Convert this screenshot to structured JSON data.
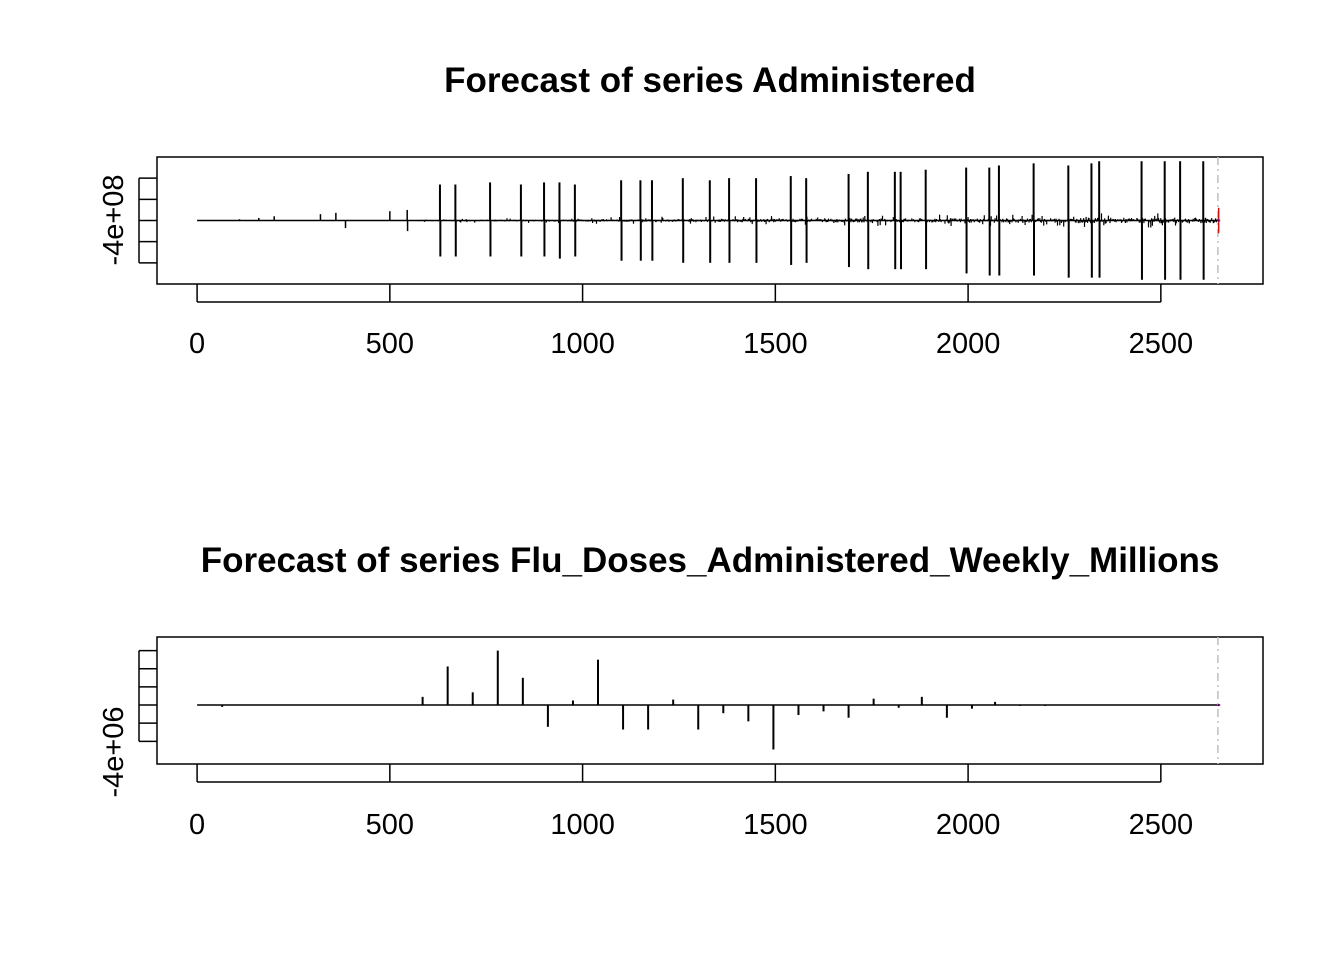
{
  "chart_data": [
    {
      "type": "line",
      "title": "Forecast of series Administered",
      "xlabel": "",
      "ylabel": "",
      "xlim": [
        -104,
        2765
      ],
      "ylim": [
        -1500000000.0,
        1500000000.0
      ],
      "x_ticks": [
        0,
        500,
        1000,
        1500,
        2000,
        2500
      ],
      "y_tick_values": [
        -1000000000.0,
        -500000000.0,
        0,
        500000000.0,
        1000000000.0
      ],
      "y_tick_label": "-4e+08",
      "forecast_start": 2648,
      "grid": false,
      "colors": {
        "series": "#000000",
        "forecast": "#ff0000",
        "forecast_mean": "#0000ff",
        "divider": "#bebebe"
      },
      "series": [
        {
          "values_description_free": true,
          "spikes": [
            {
              "x": 630,
              "y": 850000000.0
            },
            {
              "x": 631,
              "y": -850000000.0
            },
            {
              "x": 670,
              "y": 850000000.0
            },
            {
              "x": 671,
              "y": -850000000.0
            },
            {
              "x": 760,
              "y": 900000000.0
            },
            {
              "x": 761,
              "y": -850000000.0
            },
            {
              "x": 840,
              "y": 850000000.0
            },
            {
              "x": 841,
              "y": -850000000.0
            },
            {
              "x": 900,
              "y": 900000000.0
            },
            {
              "x": 901,
              "y": -850000000.0
            },
            {
              "x": 940,
              "y": 900000000.0
            },
            {
              "x": 941,
              "y": -900000000.0
            },
            {
              "x": 980,
              "y": 850000000.0
            },
            {
              "x": 981,
              "y": -850000000.0
            },
            {
              "x": 1100,
              "y": 950000000.0
            },
            {
              "x": 1101,
              "y": -950000000.0
            },
            {
              "x": 1150,
              "y": 950000000.0
            },
            {
              "x": 1151,
              "y": -950000000.0
            },
            {
              "x": 1180,
              "y": 950000000.0
            },
            {
              "x": 1181,
              "y": -950000000.0
            },
            {
              "x": 1260,
              "y": 1000000000.0
            },
            {
              "x": 1261,
              "y": -1000000000.0
            },
            {
              "x": 1330,
              "y": 950000000.0
            },
            {
              "x": 1331,
              "y": -1000000000.0
            },
            {
              "x": 1380,
              "y": 1000000000.0
            },
            {
              "x": 1381,
              "y": -1000000000.0
            },
            {
              "x": 1450,
              "y": 1000000000.0
            },
            {
              "x": 1451,
              "y": -1000000000.0
            },
            {
              "x": 1540,
              "y": 1050000000.0
            },
            {
              "x": 1541,
              "y": -1050000000.0
            },
            {
              "x": 1580,
              "y": 1000000000.0
            },
            {
              "x": 1581,
              "y": -1000000000.0
            },
            {
              "x": 1690,
              "y": 1100000000.0
            },
            {
              "x": 1691,
              "y": -1100000000.0
            },
            {
              "x": 1740,
              "y": 1150000000.0
            },
            {
              "x": 1741,
              "y": -1150000000.0
            },
            {
              "x": 1810,
              "y": 1150000000.0
            },
            {
              "x": 1811,
              "y": -1150000000.0
            },
            {
              "x": 1825,
              "y": 1150000000.0
            },
            {
              "x": 1826,
              "y": -1150000000.0
            },
            {
              "x": 1890,
              "y": 1200000000.0
            },
            {
              "x": 1891,
              "y": -1150000000.0
            },
            {
              "x": 1995,
              "y": 1250000000.0
            },
            {
              "x": 1996,
              "y": -1250000000.0
            },
            {
              "x": 2055,
              "y": 1250000000.0
            },
            {
              "x": 2056,
              "y": -1300000000.0
            },
            {
              "x": 2080,
              "y": 1300000000.0
            },
            {
              "x": 2081,
              "y": -1300000000.0
            },
            {
              "x": 2170,
              "y": 1350000000.0
            },
            {
              "x": 2171,
              "y": -1300000000.0
            },
            {
              "x": 2260,
              "y": 1300000000.0
            },
            {
              "x": 2261,
              "y": -1350000000.0
            },
            {
              "x": 2320,
              "y": 1350000000.0
            },
            {
              "x": 2321,
              "y": -1350000000.0
            },
            {
              "x": 2340,
              "y": 1400000000.0
            },
            {
              "x": 2341,
              "y": -1350000000.0
            },
            {
              "x": 2450,
              "y": 1400000000.0
            },
            {
              "x": 2451,
              "y": -1400000000.0
            },
            {
              "x": 2510,
              "y": 1400000000.0
            },
            {
              "x": 2511,
              "y": -1400000000.0
            },
            {
              "x": 2550,
              "y": 1400000000.0
            },
            {
              "x": 2551,
              "y": -1400000000.0
            },
            {
              "x": 2610,
              "y": 1400000000.0
            },
            {
              "x": 2611,
              "y": -1400000000.0
            }
          ],
          "small_spikes": [
            {
              "x": 110,
              "y": 30000000.0
            },
            {
              "x": 160,
              "y": 60000000.0
            },
            {
              "x": 200,
              "y": 100000000.0
            },
            {
              "x": 320,
              "y": 150000000.0
            },
            {
              "x": 360,
              "y": 180000000.0
            },
            {
              "x": 385,
              "y": -180000000.0
            },
            {
              "x": 500,
              "y": 220000000.0
            },
            {
              "x": 545,
              "y": 250000000.0
            },
            {
              "x": 546,
              "y": -250000000.0
            }
          ],
          "noise_from": 570,
          "noise_amplitude": 120000000.0
        }
      ]
    },
    {
      "type": "line",
      "title": "Forecast of series Flu_Doses_Administered_Weekly_Millions",
      "xlabel": "",
      "ylabel": "",
      "xlim": [
        -104,
        2765
      ],
      "ylim": [
        -13000000.0,
        15000000.0
      ],
      "x_ticks": [
        0,
        500,
        1000,
        1500,
        2000,
        2500
      ],
      "y_tick_values": [
        -8000000.0,
        -4000000.0,
        0,
        4000000.0,
        8000000.0,
        12000000.0,
        16000000.0
      ],
      "y_tick_label": "-4e+06",
      "forecast_start": 2648,
      "grid": false,
      "colors": {
        "series": "#000000",
        "forecast": "#ff0000",
        "forecast_mean": "#0000ff",
        "divider": "#bebebe"
      },
      "series": [
        {
          "spikes": [
            {
              "x": 65,
              "y": -400000.0
            },
            {
              "x": 585,
              "y": 1800000.0
            },
            {
              "x": 650,
              "y": 8500000.0
            },
            {
              "x": 715,
              "y": 2800000.0
            },
            {
              "x": 780,
              "y": 12000000.0
            },
            {
              "x": 845,
              "y": 6000000.0
            },
            {
              "x": 910,
              "y": -4800000.0
            },
            {
              "x": 975,
              "y": 1000000.0
            },
            {
              "x": 1040,
              "y": 10000000.0
            },
            {
              "x": 1105,
              "y": -5400000.0
            },
            {
              "x": 1170,
              "y": -5400000.0
            },
            {
              "x": 1235,
              "y": 1200000.0
            },
            {
              "x": 1300,
              "y": -5400000.0
            },
            {
              "x": 1365,
              "y": -1800000.0
            },
            {
              "x": 1430,
              "y": -3600000.0
            },
            {
              "x": 1495,
              "y": -9800000.0
            },
            {
              "x": 1560,
              "y": -2200000.0
            },
            {
              "x": 1625,
              "y": -1400000.0
            },
            {
              "x": 1690,
              "y": -2800000.0
            },
            {
              "x": 1755,
              "y": 1400000.0
            },
            {
              "x": 1820,
              "y": -600000.0
            },
            {
              "x": 1880,
              "y": 1800000.0
            },
            {
              "x": 1945,
              "y": -2800000.0
            },
            {
              "x": 2010,
              "y": -800000.0
            },
            {
              "x": 2070,
              "y": 700000.0
            },
            {
              "x": 2135,
              "y": -200000.0
            },
            {
              "x": 2200,
              "y": -200000.0
            }
          ]
        }
      ]
    }
  ]
}
